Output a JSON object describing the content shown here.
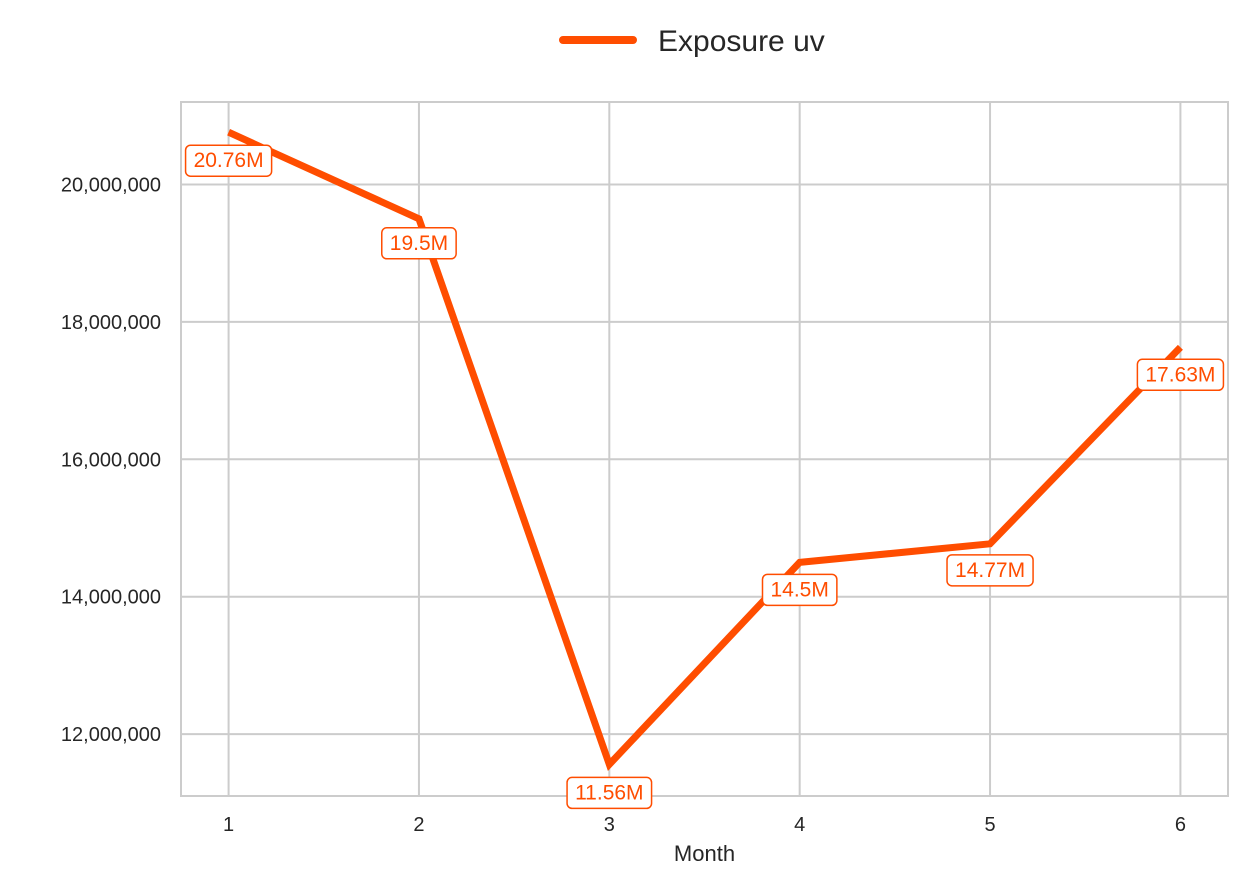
{
  "chart_data": {
    "type": "line",
    "title": "",
    "xlabel": "Month",
    "ylabel": "",
    "x": [
      1,
      2,
      3,
      4,
      5,
      6
    ],
    "x_tick_labels": [
      "1",
      "2",
      "3",
      "4",
      "5",
      "6"
    ],
    "xlim": [
      0.75,
      6.25
    ],
    "ylim": [
      11100000,
      21200000
    ],
    "y_ticks": [
      12000000,
      14000000,
      16000000,
      18000000,
      20000000
    ],
    "y_tick_labels": [
      "12,000,000",
      "14,000,000",
      "16,000,000",
      "18,000,000",
      "20,000,000"
    ],
    "grid": true,
    "legend_position": "top-center",
    "series": [
      {
        "name": "Exposure uv",
        "color": "#FF4D00",
        "values": [
          20760000,
          19500000,
          11560000,
          14500000,
          14770000,
          17630000
        ],
        "labels": [
          "20.76M",
          "19.5M",
          "11.56M",
          "14.5M",
          "14.77M",
          "17.63M"
        ]
      }
    ]
  }
}
